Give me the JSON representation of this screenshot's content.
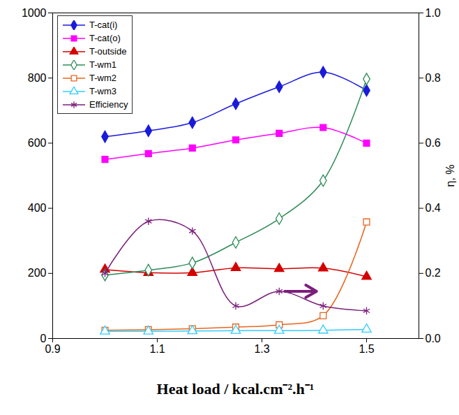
{
  "chart_data": {
    "type": "line",
    "x_label": "Heat load / kcal.cm⁻².h⁻¹",
    "y2_label": "η, %",
    "x": [
      1.0,
      1.083,
      1.167,
      1.25,
      1.333,
      1.417,
      1.5
    ],
    "xlim": [
      0.9,
      1.6
    ],
    "xticks": [
      0.9,
      1.1,
      1.3,
      1.5
    ],
    "ylim": [
      0,
      1000
    ],
    "yticks": [
      0,
      200,
      400,
      600,
      800,
      1000
    ],
    "y2lim": [
      0,
      1
    ],
    "y2ticks": [
      {
        "value": 0,
        "label": "0.0"
      },
      {
        "value": 0.2,
        "label": "0.2"
      },
      {
        "value": 0.4,
        "label": "0.4"
      },
      {
        "value": 0.6,
        "label": "0.6"
      },
      {
        "value": 0.8,
        "label": "0.8"
      },
      {
        "value": 1,
        "label": "1.0"
      }
    ],
    "legend": "top-left",
    "series": [
      {
        "name": "T-cat(i)",
        "color": "#1a1adb",
        "marker": "diamond",
        "values": [
          620,
          638,
          663,
          721,
          773,
          818,
          762
        ]
      },
      {
        "name": "T-cat(o)",
        "color": "#ff00ff",
        "marker": "square",
        "values": [
          550,
          568,
          585,
          610,
          630,
          648,
          600
        ]
      },
      {
        "name": "T-outside",
        "color": "#d40000",
        "marker": "triangle",
        "values": [
          212,
          202,
          202,
          217,
          214,
          216,
          190
        ]
      },
      {
        "name": "T-wm1",
        "color": "#2e8b57",
        "marker": "open-diamond",
        "values": [
          195,
          210,
          232,
          295,
          368,
          485,
          797
        ]
      },
      {
        "name": "T-wm2",
        "color": "#e8661e",
        "marker": "open-square",
        "values": [
          25,
          27,
          30,
          35,
          42,
          70,
          358
        ]
      },
      {
        "name": "T-wm3",
        "color": "#33ccff",
        "marker": "open-triangle",
        "values": [
          22,
          22,
          23,
          24,
          24,
          25,
          28
        ]
      },
      {
        "name": "Efficiency",
        "color": "#7b1f7b",
        "marker": "asterisk",
        "axis": "y2",
        "values": [
          0.2,
          0.36,
          0.33,
          0.1,
          0.145,
          0.1,
          0.085
        ]
      }
    ]
  }
}
